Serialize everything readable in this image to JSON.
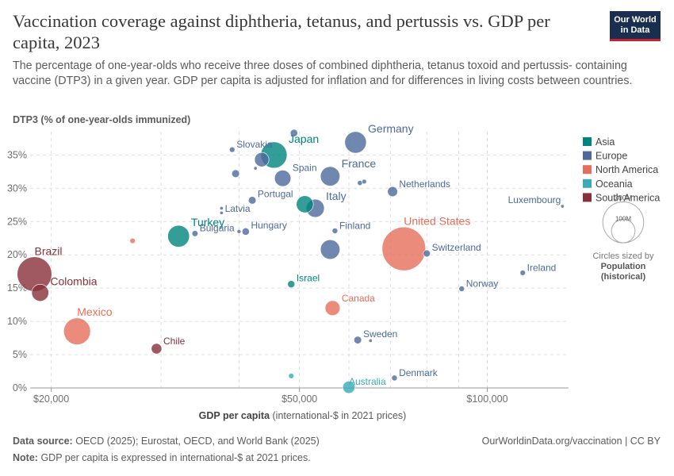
{
  "header": {
    "title": "Vaccination coverage against diphtheria, tetanus, and pertussis vs. GDP per capita, 2023",
    "subtitle": "The percentage of one-year-olds who receive three doses of combined diphtheria, tetanus toxoid and pertussis- containing vaccine (DTP3) in a given year. GDP per capita is adjusted for inflation and for differences in living costs between countries.",
    "logo_line1": "Our World",
    "logo_line2": "in Data"
  },
  "footer": {
    "source_label": "Data source:",
    "source_text": "OECD (2025); Eurostat, OECD, and World Bank (2025)",
    "note_label": "Note:",
    "note_text": "GDP per capita is expressed in international-$ at 2021 prices.",
    "license": "OurWorldinData.org/vaccination | CC BY"
  },
  "colors": {
    "Asia": "#00847e",
    "Europe": "#4c6a9c",
    "North America": "#e56e5a",
    "Oceania": "#38aaba",
    "South America": "#883039"
  },
  "chart_data": {
    "type": "scatter",
    "title": "Vaccination coverage against diphtheria, tetanus, and pertussis vs. GDP per capita, 2023",
    "ylabel": "DTP3 (% of one-year-olds immunized)",
    "xlabel_bold": "GDP per capita",
    "xlabel_rest": "(international-$ in 2021 prices)",
    "x_scale": "log",
    "xlim": [
      18500,
      135000
    ],
    "ylim": [
      0,
      38.5
    ],
    "x_ticks": [
      {
        "value": 20000,
        "label": "$20,000"
      },
      {
        "value": 50000,
        "label": "$50,000"
      },
      {
        "value": 100000,
        "label": "$100,000"
      }
    ],
    "x_grid": [
      20000,
      30000,
      40000,
      50000,
      60000,
      70000,
      80000,
      90000,
      100000
    ],
    "y_ticks": [
      {
        "value": 0,
        "label": "0%"
      },
      {
        "value": 5,
        "label": "5%"
      },
      {
        "value": 10,
        "label": "10%"
      },
      {
        "value": 15,
        "label": "15%"
      },
      {
        "value": 20,
        "label": "20%"
      },
      {
        "value": 25,
        "label": "25%"
      },
      {
        "value": 30,
        "label": "30%"
      },
      {
        "value": 35,
        "label": "35%"
      }
    ],
    "legend": {
      "placement": "right",
      "entries": [
        "Asia",
        "Europe",
        "North America",
        "Oceania",
        "South America"
      ]
    },
    "size_legend": {
      "large_label": "300M",
      "small_label": "100M",
      "caption_line1": "Circles sized by",
      "caption_line2": "Population",
      "caption_line3": "(historical)",
      "large_value": 300,
      "small_value": 100
    },
    "points": [
      {
        "label": "Japan",
        "region": "Asia",
        "gdp": 45500,
        "dtp3": 35.0,
        "pop": 124
      },
      {
        "label": "Turkey",
        "region": "Asia",
        "gdp": 32000,
        "dtp3": 22.8,
        "pop": 85
      },
      {
        "label": "Israel",
        "region": "Asia",
        "gdp": 48500,
        "dtp3": 15.6,
        "pop": 9.5
      },
      {
        "label": "",
        "region": "Asia",
        "gdp": 51000,
        "dtp3": 27.6,
        "pop": 52
      },
      {
        "label": "Slovakia",
        "region": "Europe",
        "gdp": 39000,
        "dtp3": 35.8,
        "pop": 5.4
      },
      {
        "label": "Germany",
        "region": "Europe",
        "gdp": 61500,
        "dtp3": 36.9,
        "pop": 84
      },
      {
        "label": "Spain",
        "region": "Europe",
        "gdp": 47000,
        "dtp3": 31.5,
        "pop": 48
      },
      {
        "label": "France",
        "region": "Europe",
        "gdp": 56000,
        "dtp3": 31.8,
        "pop": 68
      },
      {
        "label": "Netherlands",
        "region": "Europe",
        "gdp": 70500,
        "dtp3": 29.5,
        "pop": 18
      },
      {
        "label": "Portugal",
        "region": "Europe",
        "gdp": 42000,
        "dtp3": 28.2,
        "pop": 10.5
      },
      {
        "label": "Italy",
        "region": "Europe",
        "gdp": 53000,
        "dtp3": 27.0,
        "pop": 59
      },
      {
        "label": "Latvia",
        "region": "Europe",
        "gdp": 37500,
        "dtp3": 26.3,
        "pop": 1.9
      },
      {
        "label": "Luxembourg",
        "region": "Europe",
        "gdp": 132000,
        "dtp3": 27.3,
        "pop": 0.66
      },
      {
        "label": "Bulgaria",
        "region": "Europe",
        "gdp": 34000,
        "dtp3": 23.2,
        "pop": 6.5
      },
      {
        "label": "Hungary",
        "region": "Europe",
        "gdp": 41000,
        "dtp3": 23.5,
        "pop": 9.6
      },
      {
        "label": "Finland",
        "region": "Europe",
        "gdp": 57000,
        "dtp3": 23.6,
        "pop": 5.6
      },
      {
        "label": "Switzerland",
        "region": "Europe",
        "gdp": 80000,
        "dtp3": 20.2,
        "pop": 8.8
      },
      {
        "label": "Ireland",
        "region": "Europe",
        "gdp": 114000,
        "dtp3": 17.3,
        "pop": 5.3
      },
      {
        "label": "Norway",
        "region": "Europe",
        "gdp": 91000,
        "dtp3": 14.9,
        "pop": 5.5
      },
      {
        "label": "Sweden",
        "region": "Europe",
        "gdp": 62000,
        "dtp3": 7.2,
        "pop": 10.5
      },
      {
        "label": "Denmark",
        "region": "Europe",
        "gdp": 71000,
        "dtp3": 1.5,
        "pop": 5.9
      },
      {
        "label": "",
        "region": "Europe",
        "gdp": 49000,
        "dtp3": 38.3,
        "pop": 10
      },
      {
        "label": "",
        "region": "Europe",
        "gdp": 39500,
        "dtp3": 32.2,
        "pop": 10.8
      },
      {
        "label": "",
        "region": "Europe",
        "gdp": 43500,
        "dtp3": 34.3,
        "pop": 37
      },
      {
        "label": "",
        "region": "Europe",
        "gdp": 42500,
        "dtp3": 33.0,
        "pop": 0.37
      },
      {
        "label": "",
        "region": "Europe",
        "gdp": 62500,
        "dtp3": 30.8,
        "pop": 4.5
      },
      {
        "label": "",
        "region": "Europe",
        "gdp": 63500,
        "dtp3": 31.0,
        "pop": 3.9
      },
      {
        "label": "",
        "region": "Europe",
        "gdp": 37500,
        "dtp3": 27.0,
        "pop": 2.1
      },
      {
        "label": "",
        "region": "Europe",
        "gdp": 40000,
        "dtp3": 23.5,
        "pop": 2.8
      },
      {
        "label": "",
        "region": "Europe",
        "gdp": 56000,
        "dtp3": 20.8,
        "pop": 68
      },
      {
        "label": "",
        "region": "Europe",
        "gdp": 65000,
        "dtp3": 7.1,
        "pop": 1.3
      },
      {
        "label": "United States",
        "region": "North America",
        "gdp": 73500,
        "dtp3": 20.9,
        "pop": 340
      },
      {
        "label": "Canada",
        "region": "North America",
        "gdp": 56500,
        "dtp3": 12.0,
        "pop": 40
      },
      {
        "label": "Mexico",
        "region": "North America",
        "gdp": 22000,
        "dtp3": 8.5,
        "pop": 129
      },
      {
        "label": "",
        "region": "North America",
        "gdp": 27000,
        "dtp3": 22.1,
        "pop": 5.2
      },
      {
        "label": "Australia",
        "region": "Oceania",
        "gdp": 60000,
        "dtp3": 0.1,
        "pop": 27
      },
      {
        "label": "",
        "region": "Oceania",
        "gdp": 48500,
        "dtp3": 1.8,
        "pop": 5.2
      },
      {
        "label": "Brazil",
        "region": "South America",
        "gdp": 18800,
        "dtp3": 17.1,
        "pop": 216
      },
      {
        "label": "Colombia",
        "region": "South America",
        "gdp": 19200,
        "dtp3": 14.3,
        "pop": 52
      },
      {
        "label": "Chile",
        "region": "South America",
        "gdp": 29500,
        "dtp3": 5.9,
        "pop": 19.6
      }
    ]
  }
}
